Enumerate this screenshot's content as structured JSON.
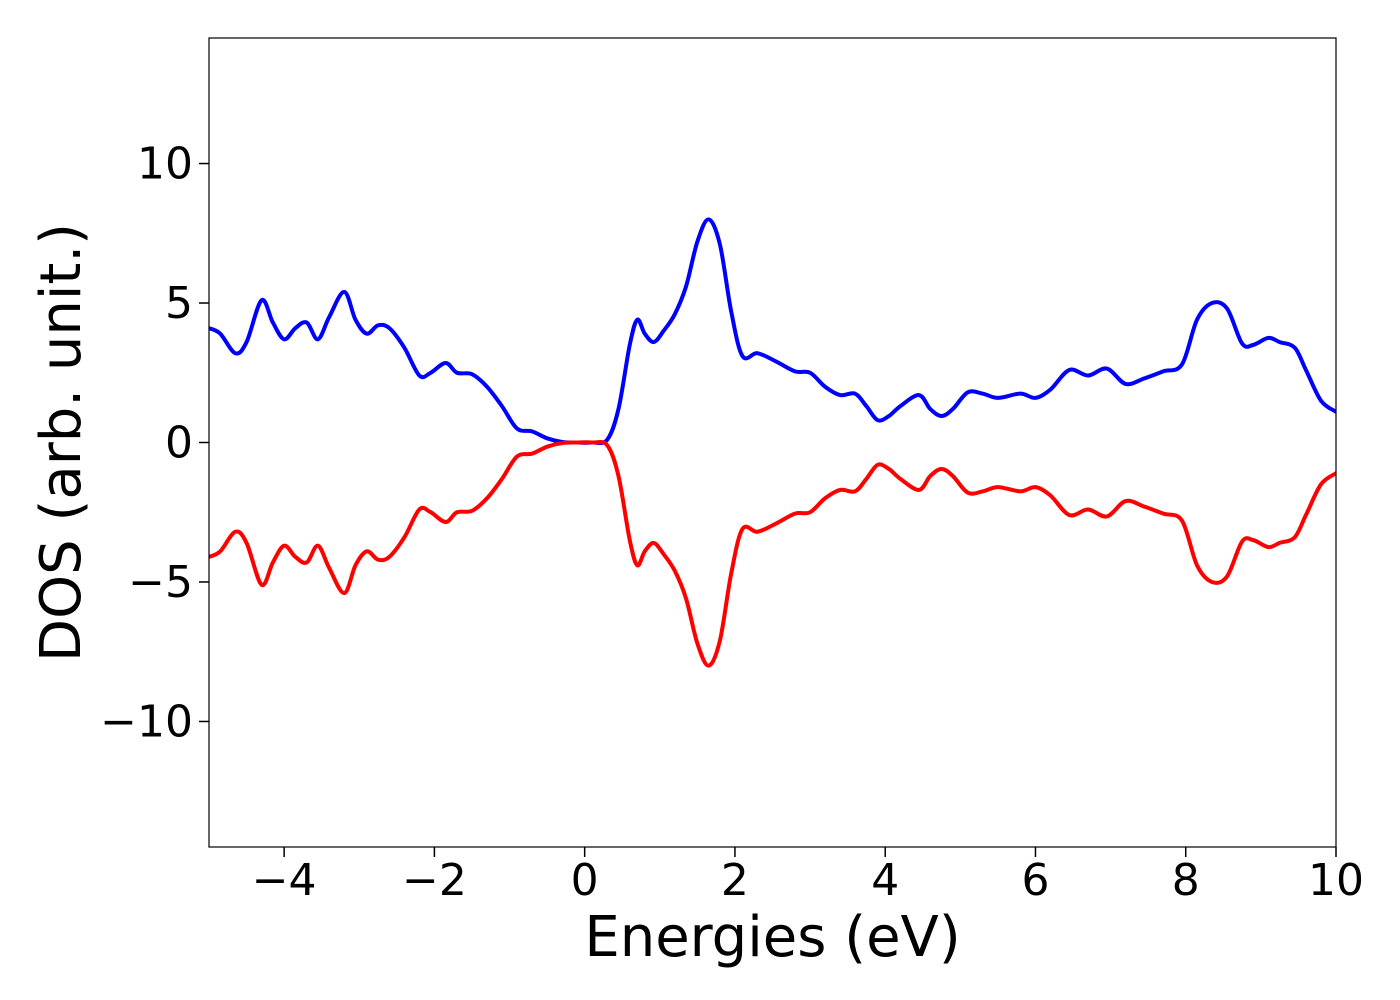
{
  "chart_data": {
    "type": "line",
    "title": "",
    "xlabel": "Energies (eV)",
    "ylabel": "DOS (arb. unit.)",
    "xlim": [
      -5,
      10
    ],
    "ylim": [
      -14.5,
      14.5
    ],
    "grid": false,
    "legend": "none",
    "x_ticks": [
      {
        "value": -4,
        "label": "−4"
      },
      {
        "value": -2,
        "label": "−2"
      },
      {
        "value": 0,
        "label": "0"
      },
      {
        "value": 2,
        "label": "2"
      },
      {
        "value": 4,
        "label": "4"
      },
      {
        "value": 6,
        "label": "6"
      },
      {
        "value": 8,
        "label": "8"
      },
      {
        "value": 10,
        "label": "10"
      }
    ],
    "y_ticks": [
      {
        "value": -10,
        "label": "−10"
      },
      {
        "value": -5,
        "label": "−5"
      },
      {
        "value": 0,
        "label": "0"
      },
      {
        "value": 5,
        "label": "5"
      },
      {
        "value": 10,
        "label": "10"
      }
    ],
    "series": [
      {
        "color": "#0000ff",
        "x": [
          -5.0,
          -4.85,
          -4.65,
          -4.5,
          -4.3,
          -4.15,
          -4.0,
          -3.85,
          -3.7,
          -3.55,
          -3.4,
          -3.2,
          -3.05,
          -2.9,
          -2.75,
          -2.6,
          -2.4,
          -2.2,
          -2.05,
          -1.85,
          -1.7,
          -1.5,
          -1.3,
          -1.1,
          -0.9,
          -0.7,
          -0.5,
          -0.3,
          -0.1,
          0.1,
          0.3,
          0.45,
          0.6,
          0.7,
          0.8,
          0.92,
          1.05,
          1.2,
          1.35,
          1.5,
          1.65,
          1.8,
          1.95,
          2.1,
          2.3,
          2.55,
          2.8,
          3.0,
          3.2,
          3.4,
          3.6,
          3.75,
          3.9,
          4.05,
          4.2,
          4.45,
          4.6,
          4.75,
          4.9,
          5.1,
          5.3,
          5.5,
          5.8,
          6.0,
          6.2,
          6.45,
          6.7,
          6.95,
          7.2,
          7.45,
          7.7,
          7.95,
          8.15,
          8.35,
          8.55,
          8.75,
          8.9,
          9.1,
          9.25,
          9.45,
          9.6,
          9.8,
          10.0
        ],
        "y": [
          4.1,
          3.9,
          3.2,
          3.6,
          5.1,
          4.3,
          3.7,
          4.1,
          4.3,
          3.7,
          4.5,
          5.4,
          4.4,
          3.9,
          4.2,
          4.1,
          3.4,
          2.4,
          2.5,
          2.85,
          2.5,
          2.45,
          2.0,
          1.3,
          0.5,
          0.4,
          0.15,
          0.02,
          0.0,
          0.0,
          0.1,
          1.2,
          3.5,
          4.4,
          3.9,
          3.6,
          4.0,
          4.6,
          5.6,
          7.2,
          8.0,
          7.1,
          4.7,
          3.1,
          3.2,
          2.9,
          2.55,
          2.5,
          2.0,
          1.7,
          1.75,
          1.3,
          0.8,
          0.95,
          1.3,
          1.7,
          1.2,
          0.95,
          1.2,
          1.8,
          1.75,
          1.6,
          1.75,
          1.6,
          1.9,
          2.6,
          2.4,
          2.65,
          2.1,
          2.3,
          2.55,
          2.8,
          4.4,
          5.0,
          4.8,
          3.55,
          3.5,
          3.75,
          3.6,
          3.4,
          2.6,
          1.5,
          1.1
        ]
      },
      {
        "color": "#ff0000",
        "x": [
          -5.0,
          -4.85,
          -4.65,
          -4.5,
          -4.3,
          -4.15,
          -4.0,
          -3.85,
          -3.7,
          -3.55,
          -3.4,
          -3.2,
          -3.05,
          -2.9,
          -2.75,
          -2.6,
          -2.4,
          -2.2,
          -2.05,
          -1.85,
          -1.7,
          -1.5,
          -1.3,
          -1.1,
          -0.9,
          -0.7,
          -0.5,
          -0.3,
          -0.1,
          0.1,
          0.3,
          0.45,
          0.6,
          0.7,
          0.8,
          0.92,
          1.05,
          1.2,
          1.35,
          1.5,
          1.65,
          1.8,
          1.95,
          2.1,
          2.3,
          2.55,
          2.8,
          3.0,
          3.2,
          3.4,
          3.6,
          3.75,
          3.9,
          4.05,
          4.2,
          4.45,
          4.6,
          4.75,
          4.9,
          5.1,
          5.3,
          5.5,
          5.8,
          6.0,
          6.2,
          6.45,
          6.7,
          6.95,
          7.2,
          7.45,
          7.7,
          7.95,
          8.15,
          8.35,
          8.55,
          8.75,
          8.9,
          9.1,
          9.25,
          9.45,
          9.6,
          9.8,
          10.0
        ],
        "y": [
          -4.1,
          -3.9,
          -3.2,
          -3.6,
          -5.1,
          -4.3,
          -3.7,
          -4.1,
          -4.3,
          -3.7,
          -4.5,
          -5.4,
          -4.4,
          -3.9,
          -4.2,
          -4.1,
          -3.4,
          -2.4,
          -2.5,
          -2.85,
          -2.5,
          -2.45,
          -2.0,
          -1.3,
          -0.5,
          -0.4,
          -0.15,
          -0.02,
          0.0,
          0.0,
          -0.1,
          -1.2,
          -3.5,
          -4.4,
          -3.9,
          -3.6,
          -4.0,
          -4.6,
          -5.6,
          -7.2,
          -8.0,
          -7.1,
          -4.7,
          -3.1,
          -3.2,
          -2.9,
          -2.55,
          -2.5,
          -2.0,
          -1.7,
          -1.75,
          -1.3,
          -0.8,
          -0.95,
          -1.3,
          -1.7,
          -1.2,
          -0.95,
          -1.2,
          -1.8,
          -1.75,
          -1.6,
          -1.75,
          -1.6,
          -1.9,
          -2.6,
          -2.4,
          -2.65,
          -2.1,
          -2.3,
          -2.55,
          -2.8,
          -4.4,
          -5.0,
          -4.8,
          -3.55,
          -3.5,
          -3.75,
          -3.6,
          -3.4,
          -2.6,
          -1.5,
          -1.1
        ]
      }
    ]
  }
}
